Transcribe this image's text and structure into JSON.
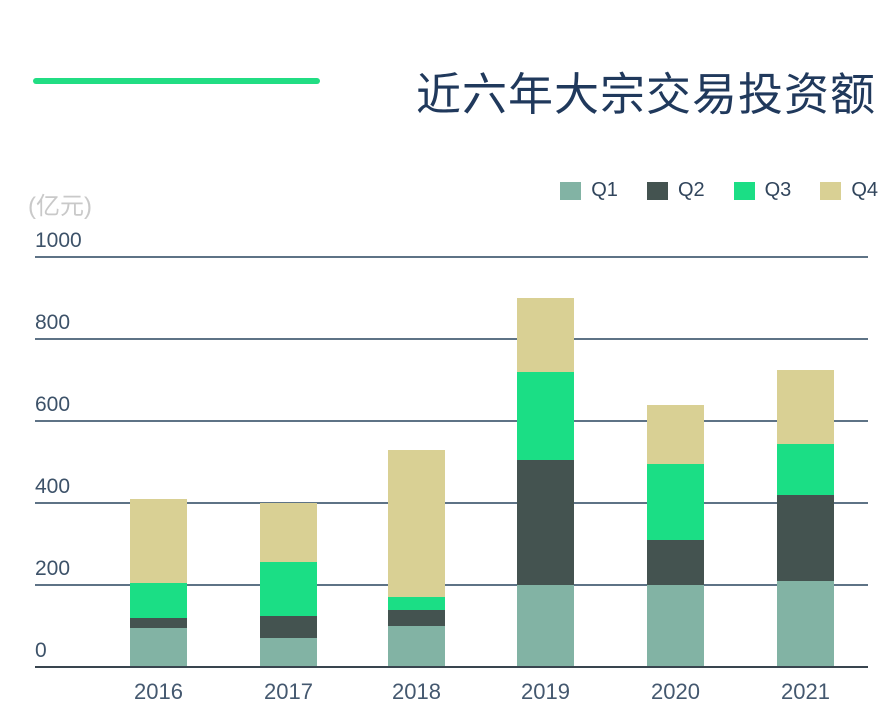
{
  "title": "近六年大宗交易投资额",
  "unit_label": "(亿元)",
  "legend": {
    "items": [
      "Q1",
      "Q2",
      "Q3",
      "Q4"
    ]
  },
  "colors": {
    "accent_line": "#21DD83",
    "title_text": "#20395C",
    "unit_text": "#C9C9C9",
    "axis_text": "#3D5269",
    "xaxis_text": "#44586F",
    "legend_text": "#31455C",
    "gridline": "#5E7386",
    "baseline": "#39454F",
    "q1": "#82B3A4",
    "q2": "#445350",
    "q3": "#1BDE85",
    "q4": "#D9D094"
  },
  "chart_data": {
    "type": "bar",
    "stacked": true,
    "title": "近六年大宗交易投资额",
    "ylabel": "(亿元)",
    "categories": [
      "2016",
      "2017",
      "2018",
      "2019",
      "2020",
      "2021"
    ],
    "series": [
      {
        "name": "Q1",
        "color": "#82B3A4",
        "values": [
          95,
          70,
          100,
          200,
          200,
          210
        ]
      },
      {
        "name": "Q2",
        "color": "#445350",
        "values": [
          25,
          55,
          40,
          305,
          110,
          210
        ]
      },
      {
        "name": "Q3",
        "color": "#1BDE85",
        "values": [
          85,
          130,
          30,
          215,
          185,
          125
        ]
      },
      {
        "name": "Q4",
        "color": "#D9D094",
        "values": [
          205,
          145,
          360,
          180,
          145,
          180
        ]
      }
    ],
    "totals": [
      410,
      400,
      530,
      900,
      640,
      725
    ],
    "yticks": [
      0,
      200,
      400,
      600,
      800,
      1000
    ],
    "ylim": [
      0,
      1000
    ],
    "grid": true,
    "legend_position": "top-right"
  }
}
